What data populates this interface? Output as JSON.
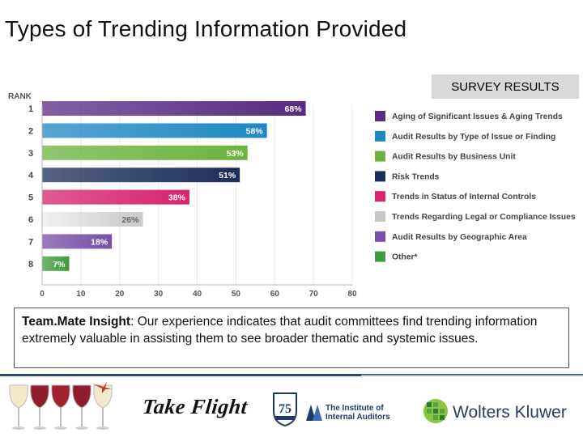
{
  "title": "Types of Trending Information Provided",
  "survey_badge": "SURVEY RESULTS",
  "chart_data": {
    "type": "bar",
    "orientation": "horizontal",
    "rank_label": "RANK",
    "ranks": [
      "1",
      "2",
      "3",
      "4",
      "5",
      "6",
      "7",
      "8"
    ],
    "categories": [
      "Aging of Significant Issues & Aging Trends",
      "Audit Results by Type of Issue or Finding",
      "Audit Results by Business Unit",
      "Risk Trends",
      "Trends in Status of Internal Controls",
      "Trends Regarding Legal or Compliance Issues",
      "Audit Results by Geographic Area",
      "Other*"
    ],
    "values": [
      68,
      58,
      53,
      51,
      38,
      26,
      18,
      7
    ],
    "value_labels": [
      "68%",
      "58%",
      "53%",
      "51%",
      "38%",
      "26%",
      "18%",
      "7%"
    ],
    "colors": [
      "#5a2b82",
      "#1f87c4",
      "#6cb33f",
      "#1c2e5a",
      "#d6246e",
      "#c8c8c8",
      "#7650a6",
      "#3f9b3a"
    ],
    "xlim": [
      0,
      80
    ],
    "xticks": [
      "0",
      "10",
      "20",
      "30",
      "40",
      "50",
      "60",
      "70",
      "80"
    ],
    "legend_position": "right"
  },
  "insight": {
    "label": "Team.Mate Insight",
    "text": ": Our experience indicates that audit committees find trending information extremely valuable in assisting them to see broader thematic and systemic issues."
  },
  "footer": {
    "take_flight": "Take Flight",
    "iia_line1": "The Institute of",
    "iia_line2": "Internal Auditors",
    "seal_number": "75",
    "wolters_kluwer": "Wolters Kluwer"
  }
}
